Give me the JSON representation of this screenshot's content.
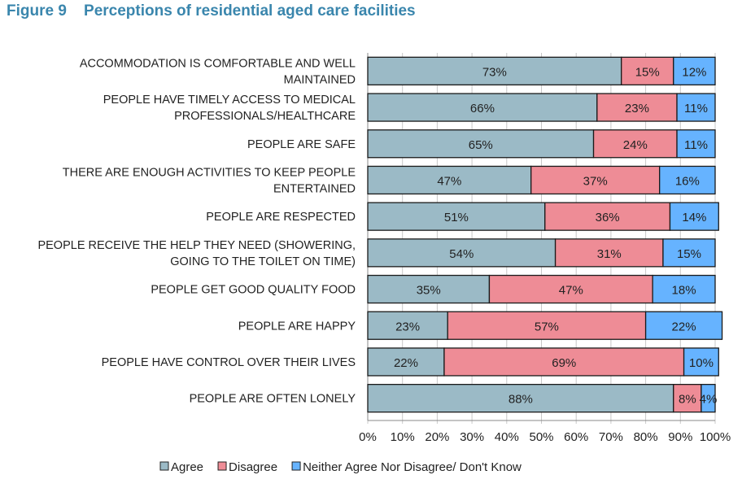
{
  "title": "Figure 9    Perceptions of residential aged care facilities",
  "chart_data": {
    "type": "bar",
    "orientation": "horizontal",
    "stacked": true,
    "percent": true,
    "categories": [
      [
        "ACCOMMODATION IS COMFORTABLE AND WELL",
        "MAINTAINED"
      ],
      [
        "PEOPLE HAVE TIMELY ACCESS TO MEDICAL",
        "PROFESSIONALS/HEALTHCARE"
      ],
      [
        "PEOPLE ARE SAFE"
      ],
      [
        "THERE ARE ENOUGH ACTIVITIES TO KEEP PEOPLE",
        "ENTERTAINED"
      ],
      [
        "PEOPLE ARE RESPECTED"
      ],
      [
        "PEOPLE RECEIVE THE HELP THEY NEED (SHOWERING,",
        "GOING TO THE TOILET ON TIME)"
      ],
      [
        "PEOPLE GET GOOD QUALITY FOOD"
      ],
      [
        "PEOPLE ARE HAPPY"
      ],
      [
        "PEOPLE HAVE CONTROL OVER THEIR LIVES"
      ],
      [
        "PEOPLE ARE OFTEN LONELY"
      ]
    ],
    "series": [
      {
        "name": "Agree",
        "color": "#9bbac6",
        "values": [
          73,
          66,
          65,
          47,
          51,
          54,
          35,
          23,
          22,
          88
        ]
      },
      {
        "name": "Disagree",
        "color": "#ee8c96",
        "values": [
          15,
          23,
          24,
          37,
          36,
          31,
          47,
          57,
          69,
          8
        ]
      },
      {
        "name": "Neither Agree Nor Disagree/ Don't Know",
        "color": "#66b3ff",
        "values": [
          12,
          11,
          11,
          16,
          14,
          15,
          18,
          22,
          10,
          4
        ]
      }
    ],
    "xlim": [
      0,
      100
    ],
    "xticks": [
      "0%",
      "10%",
      "20%",
      "30%",
      "40%",
      "50%",
      "60%",
      "70%",
      "80%",
      "90%",
      "100%"
    ],
    "grid": true,
    "legend": "bottom"
  }
}
